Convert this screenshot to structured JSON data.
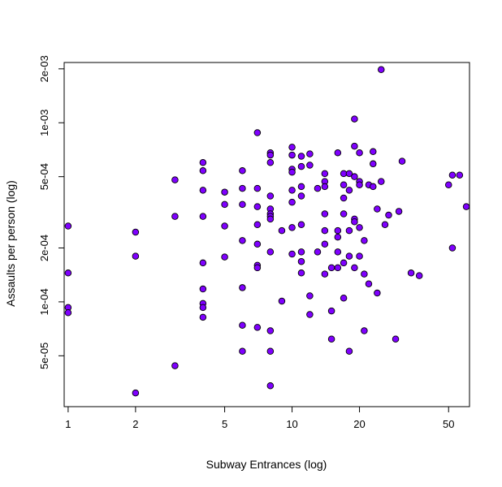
{
  "chart_data": {
    "type": "scatter",
    "title": "",
    "xlabel": "Subway Entrances (log)",
    "ylabel": "Assaults per person (log)",
    "x_scale": "log",
    "y_scale": "log",
    "xlim": [
      0.96,
      62
    ],
    "ylim": [
      2.6e-05,
      0.00217
    ],
    "x_ticks": [
      {
        "value": 1,
        "label": "1"
      },
      {
        "value": 2,
        "label": "2"
      },
      {
        "value": 5,
        "label": "5"
      },
      {
        "value": 10,
        "label": "10"
      },
      {
        "value": 20,
        "label": "20"
      },
      {
        "value": 50,
        "label": "50"
      }
    ],
    "y_ticks": [
      {
        "value": 5e-05,
        "label": "5e-05"
      },
      {
        "value": 0.0001,
        "label": "1e-04"
      },
      {
        "value": 0.0002,
        "label": "2e-04"
      },
      {
        "value": 0.0005,
        "label": "5e-04"
      },
      {
        "value": 0.001,
        "label": "1e-03"
      },
      {
        "value": 0.002,
        "label": "2e-03"
      }
    ],
    "grid": false,
    "legend": "none",
    "point_color": "#7f00ff",
    "point_stroke": "#000000",
    "points": [
      [
        1,
        0.000265
      ],
      [
        1,
        0.000145
      ],
      [
        1,
        9.3e-05
      ],
      [
        1,
        8.7e-05
      ],
      [
        2,
        0.000245
      ],
      [
        2,
        0.00018
      ],
      [
        2,
        3.1e-05
      ],
      [
        3,
        0.00048
      ],
      [
        3,
        0.0003
      ],
      [
        3,
        4.4e-05
      ],
      [
        4,
        0.0006
      ],
      [
        4,
        0.00054
      ],
      [
        4,
        0.00042
      ],
      [
        4,
        0.0003
      ],
      [
        4,
        0.000165
      ],
      [
        4,
        0.000118
      ],
      [
        4,
        9.8e-05
      ],
      [
        4,
        9.3e-05
      ],
      [
        4,
        8.2e-05
      ],
      [
        5,
        0.00041
      ],
      [
        5,
        0.00035
      ],
      [
        5,
        0.000265
      ],
      [
        5,
        0.000178
      ],
      [
        6,
        0.00054
      ],
      [
        6,
        0.00043
      ],
      [
        6,
        0.00035
      ],
      [
        6,
        0.00022
      ],
      [
        6,
        0.00012
      ],
      [
        6,
        7.4e-05
      ],
      [
        6,
        5.3e-05
      ],
      [
        7,
        0.00088
      ],
      [
        7,
        0.00043
      ],
      [
        7,
        0.00034
      ],
      [
        7,
        0.00027
      ],
      [
        7,
        0.00021
      ],
      [
        7,
        0.00016
      ],
      [
        7,
        0.000155
      ],
      [
        7,
        7.2e-05
      ],
      [
        8,
        0.00068
      ],
      [
        8,
        0.00066
      ],
      [
        8,
        0.0006
      ],
      [
        8,
        0.00039
      ],
      [
        8,
        0.00033
      ],
      [
        8,
        0.00031
      ],
      [
        8,
        0.0003
      ],
      [
        8,
        0.00029
      ],
      [
        8,
        0.00019
      ],
      [
        8,
        6.9e-05
      ],
      [
        8,
        5.3e-05
      ],
      [
        8,
        3.4e-05
      ],
      [
        9,
        0.00025
      ],
      [
        9,
        0.000101
      ],
      [
        10,
        0.00073
      ],
      [
        10,
        0.00066
      ],
      [
        10,
        0.00055
      ],
      [
        10,
        0.00053
      ],
      [
        10,
        0.00042
      ],
      [
        10,
        0.00036
      ],
      [
        10,
        0.00026
      ],
      [
        10,
        0.000185
      ],
      [
        11,
        0.00065
      ],
      [
        11,
        0.00057
      ],
      [
        11,
        0.00044
      ],
      [
        11,
        0.00039
      ],
      [
        11,
        0.00027
      ],
      [
        11,
        0.00019
      ],
      [
        11,
        0.000168
      ],
      [
        11,
        0.000145
      ],
      [
        12,
        0.00067
      ],
      [
        12,
        0.00058
      ],
      [
        12,
        0.000108
      ],
      [
        12,
        8.5e-05
      ],
      [
        13,
        0.00043
      ],
      [
        13,
        0.00019
      ],
      [
        14,
        0.00052
      ],
      [
        14,
        0.00047
      ],
      [
        14,
        0.00044
      ],
      [
        14,
        0.00031
      ],
      [
        14,
        0.00025
      ],
      [
        14,
        0.00021
      ],
      [
        14,
        0.000143
      ],
      [
        15,
        0.000155
      ],
      [
        15,
        8.9e-05
      ],
      [
        15,
        6.2e-05
      ],
      [
        16,
        0.00068
      ],
      [
        16,
        0.00025
      ],
      [
        16,
        0.00023
      ],
      [
        16,
        0.00019
      ],
      [
        16,
        0.000155
      ],
      [
        17,
        0.00052
      ],
      [
        17,
        0.00045
      ],
      [
        17,
        0.00038
      ],
      [
        17,
        0.00031
      ],
      [
        17,
        0.000165
      ],
      [
        17,
        0.000105
      ],
      [
        18,
        0.00052
      ],
      [
        18,
        0.00042
      ],
      [
        18,
        0.00025
      ],
      [
        18,
        0.00018
      ],
      [
        18,
        5.3e-05
      ],
      [
        19,
        0.00105
      ],
      [
        19,
        0.00074
      ],
      [
        19,
        0.0005
      ],
      [
        19,
        0.00029
      ],
      [
        19,
        0.00028
      ],
      [
        19,
        0.000155
      ],
      [
        20,
        0.00068
      ],
      [
        20,
        0.00047
      ],
      [
        20,
        0.00045
      ],
      [
        20,
        0.00026
      ],
      [
        20,
        0.00018
      ],
      [
        21,
        0.00022
      ],
      [
        21,
        0.000143
      ],
      [
        21,
        6.9e-05
      ],
      [
        22,
        0.00045
      ],
      [
        22,
        0.000126
      ],
      [
        23,
        0.00069
      ],
      [
        23,
        0.00059
      ],
      [
        23,
        0.00044
      ],
      [
        24,
        0.00033
      ],
      [
        24,
        0.000112
      ],
      [
        25,
        0.00198
      ],
      [
        25,
        0.00047
      ],
      [
        26,
        0.00027
      ],
      [
        27,
        0.000305
      ],
      [
        29,
        6.2e-05
      ],
      [
        30,
        0.00032
      ],
      [
        31,
        0.00061
      ],
      [
        34,
        0.000145
      ],
      [
        37,
        0.00014
      ],
      [
        50,
        0.00045
      ],
      [
        52,
        0.00051
      ],
      [
        52,
        0.0002
      ],
      [
        56,
        0.00051
      ],
      [
        60,
        0.00034
      ]
    ]
  }
}
